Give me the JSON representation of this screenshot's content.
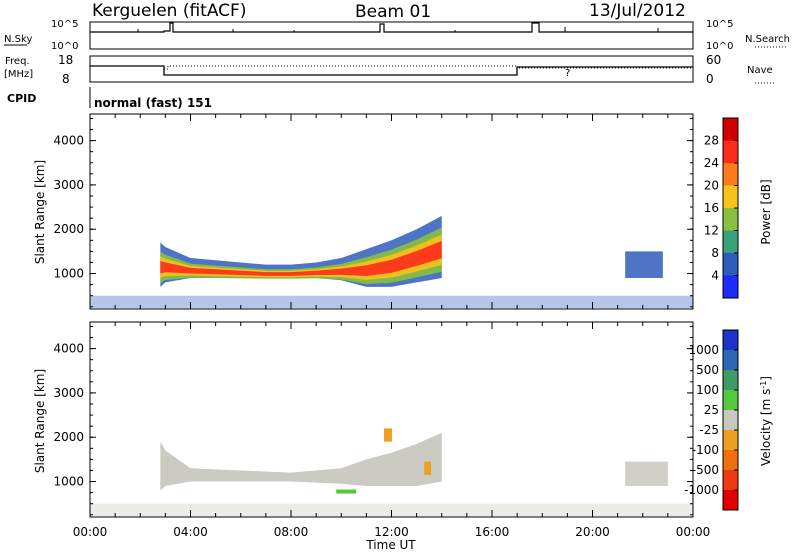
{
  "header": {
    "station": "Kerguelen (fitACF)",
    "beam": "Beam 01",
    "date": "13/Jul/2012"
  },
  "noise_panel": {
    "left_label": "N.Sky",
    "left_ticks": [
      "10^5",
      "10^0"
    ],
    "right_label": "N.Search",
    "right_ticks": [
      "10^5",
      "10^0"
    ]
  },
  "freq_panel": {
    "left_label_line1": "Freq.",
    "left_label_line2": "[MHz]",
    "left_ticks": [
      "18",
      "8"
    ],
    "right_label": "Nave",
    "right_ticks": [
      "60",
      "0"
    ]
  },
  "cpid": {
    "label": "CPID",
    "value": "normal (fast) 151"
  },
  "colorbars": {
    "power": {
      "title": "Power [dB]",
      "ticks": [
        "28",
        "24",
        "20",
        "16",
        "12",
        "8",
        "4"
      ],
      "colors": [
        "#d00000",
        "#ff2b1a",
        "#ff7a1a",
        "#f7c21a",
        "#88c040",
        "#3aa27a",
        "#2f5cbc",
        "#1f2aff"
      ]
    },
    "velocity": {
      "title": "Velocity [m s",
      "title_exp": "-1",
      "title_close": "]",
      "ticks": [
        "1000",
        "500",
        "100",
        "25",
        "-25",
        "-100",
        "-500",
        "-1000"
      ],
      "colors": [
        "#1c32c8",
        "#2f66b8",
        "#3f9a66",
        "#56c840",
        "#c8c8c0",
        "#f0a020",
        "#f07010",
        "#ee3a12",
        "#e00000"
      ]
    }
  },
  "chart_data": [
    {
      "type": "heatmap",
      "title": "Power",
      "ylabel": "Slant Range [km]",
      "ylim": [
        200,
        4600
      ],
      "yticks": [
        "4000",
        "3000",
        "2000",
        "1000"
      ],
      "xlim_hours": [
        0,
        24
      ],
      "echo_band": {
        "hours": [
          2.8,
          3.0,
          4.0,
          5.0,
          6.0,
          7.0,
          8.0,
          9.0,
          10.0,
          11.0,
          11.5,
          12.0,
          13.0,
          13.5,
          14.0
        ],
        "lower_km": [
          700,
          800,
          900,
          900,
          900,
          900,
          900,
          900,
          850,
          700,
          700,
          700,
          800,
          850,
          900
        ],
        "upper_km": [
          1700,
          1600,
          1350,
          1300,
          1250,
          1200,
          1200,
          1250,
          1350,
          1550,
          1650,
          1750,
          2000,
          2150,
          2300
        ]
      },
      "late_patch": {
        "hours": [
          21.3,
          22.8
        ],
        "km": [
          900,
          1500
        ]
      }
    },
    {
      "type": "heatmap",
      "title": "Velocity",
      "ylabel": "Slant Range [km]",
      "ylim": [
        200,
        4600
      ],
      "yticks": [
        "4000",
        "3000",
        "2000",
        "1000"
      ],
      "xlim_hours": [
        0,
        24
      ],
      "xticks": [
        "00:00",
        "04:00",
        "08:00",
        "12:00",
        "16:00",
        "20:00",
        "00:00"
      ],
      "xlabel": "Time UT",
      "ground_scatter_band": {
        "hours": [
          2.8,
          3.0,
          4.0,
          6.0,
          8.0,
          10.0,
          11.0,
          12.0,
          13.0,
          14.0
        ],
        "lower_km": [
          800,
          900,
          1000,
          1000,
          1000,
          950,
          900,
          900,
          900,
          1000
        ],
        "upper_km": [
          1900,
          1700,
          1300,
          1250,
          1200,
          1300,
          1500,
          1650,
          1850,
          2100
        ]
      },
      "late_patch": {
        "hours": [
          21.3,
          23.0
        ],
        "km": [
          900,
          1450
        ]
      }
    }
  ]
}
